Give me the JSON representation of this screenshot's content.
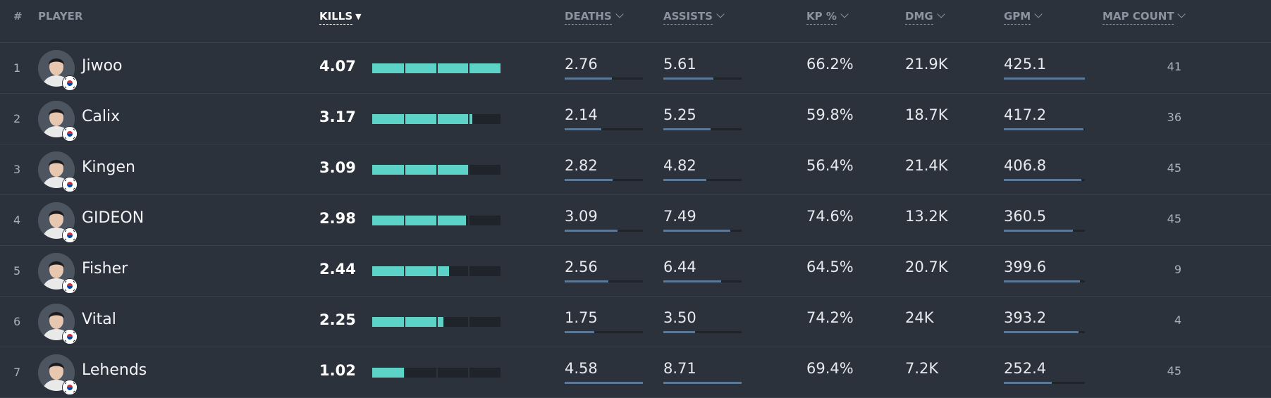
{
  "headers": {
    "rank": "#",
    "player": "PLAYER",
    "kills": "KILLS",
    "deaths": "DEATHS",
    "assists": "ASSISTS",
    "kp": "KP %",
    "dmg": "DMG",
    "gpm": "GPM",
    "map_count": "MAP COUNT"
  },
  "sort": {
    "column": "kills",
    "direction": "descending"
  },
  "colors": {
    "kills_bar": "#5dd3c8",
    "stat_bar": "#5c7897",
    "background": "#2c323b"
  },
  "players": [
    {
      "rank": "1",
      "name": "Jiwoo",
      "kills": "4.07",
      "deaths": "2.76",
      "assists": "5.61",
      "kp": "66.2%",
      "dmg": "21.9K",
      "gpm": "425.1",
      "map_count": "41",
      "flag": "south-korea-flag-icon"
    },
    {
      "rank": "2",
      "name": "Calix",
      "kills": "3.17",
      "deaths": "2.14",
      "assists": "5.25",
      "kp": "59.8%",
      "dmg": "18.7K",
      "gpm": "417.2",
      "map_count": "36",
      "flag": "south-korea-flag-icon"
    },
    {
      "rank": "3",
      "name": "Kingen",
      "kills": "3.09",
      "deaths": "2.82",
      "assists": "4.82",
      "kp": "56.4%",
      "dmg": "21.4K",
      "gpm": "406.8",
      "map_count": "45",
      "flag": "south-korea-flag-icon"
    },
    {
      "rank": "4",
      "name": "GIDEON",
      "kills": "2.98",
      "deaths": "3.09",
      "assists": "7.49",
      "kp": "74.6%",
      "dmg": "13.2K",
      "gpm": "360.5",
      "map_count": "45",
      "flag": "south-korea-flag-icon"
    },
    {
      "rank": "5",
      "name": "Fisher",
      "kills": "2.44",
      "deaths": "2.56",
      "assists": "6.44",
      "kp": "64.5%",
      "dmg": "20.7K",
      "gpm": "399.6",
      "map_count": "9",
      "flag": "south-korea-flag-icon"
    },
    {
      "rank": "6",
      "name": "Vital",
      "kills": "2.25",
      "deaths": "1.75",
      "assists": "3.50",
      "kp": "74.2%",
      "dmg": "24K",
      "gpm": "393.2",
      "map_count": "4",
      "flag": "south-korea-flag-icon"
    },
    {
      "rank": "7",
      "name": "Lehends",
      "kills": "1.02",
      "deaths": "4.58",
      "assists": "8.71",
      "kp": "69.4%",
      "dmg": "7.2K",
      "gpm": "252.4",
      "map_count": "45",
      "flag": "south-korea-flag-icon"
    }
  ]
}
